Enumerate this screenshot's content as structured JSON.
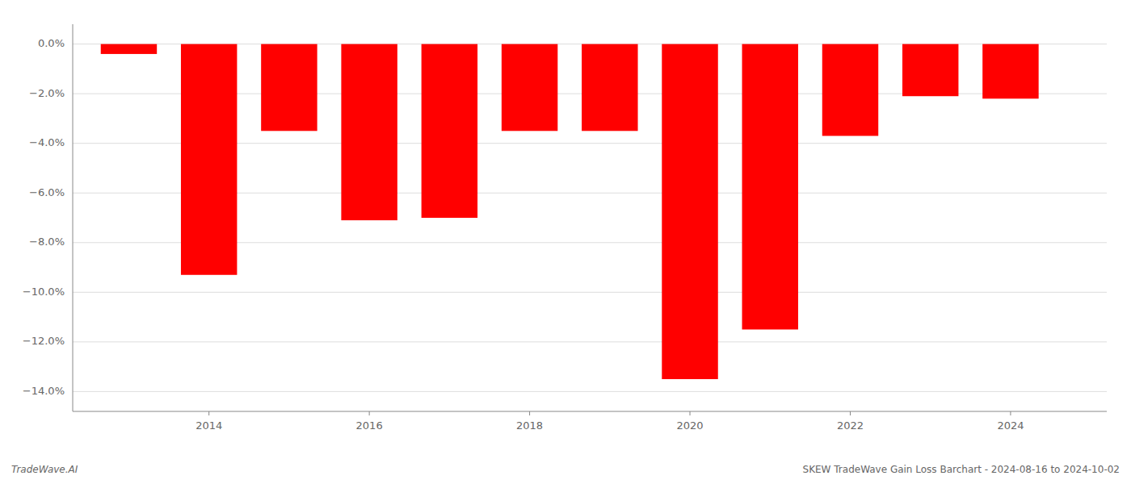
{
  "chart_data": {
    "type": "bar",
    "x": [
      2013,
      2014,
      2015,
      2016,
      2017,
      2018,
      2019,
      2020,
      2021,
      2022,
      2023,
      2024
    ],
    "values": [
      -0.4,
      -9.3,
      -3.5,
      -7.1,
      -7.0,
      -3.5,
      -3.5,
      -13.5,
      -11.5,
      -3.7,
      -2.1,
      -2.2
    ],
    "color": "#ff0000",
    "xlim": [
      2012.3,
      2025.2
    ],
    "xticks": [
      2014,
      2016,
      2018,
      2020,
      2022,
      2024
    ],
    "ylim": [
      -14.8,
      0.8
    ],
    "yticks": [
      {
        "value": 0.0,
        "label": "0.0%"
      },
      {
        "value": -2.0,
        "label": "−2.0%"
      },
      {
        "value": -4.0,
        "label": "−4.0%"
      },
      {
        "value": -6.0,
        "label": "−6.0%"
      },
      {
        "value": -8.0,
        "label": "−8.0%"
      },
      {
        "value": -10.0,
        "label": "−10.0%"
      },
      {
        "value": -12.0,
        "label": "−12.0%"
      },
      {
        "value": -14.0,
        "label": "−14.0%"
      }
    ],
    "grid": true,
    "annotations": [
      "TradeWave.AI",
      "SKEW TradeWave Gain Loss Barchart - 2024-08-16 to 2024-10-02"
    ]
  }
}
